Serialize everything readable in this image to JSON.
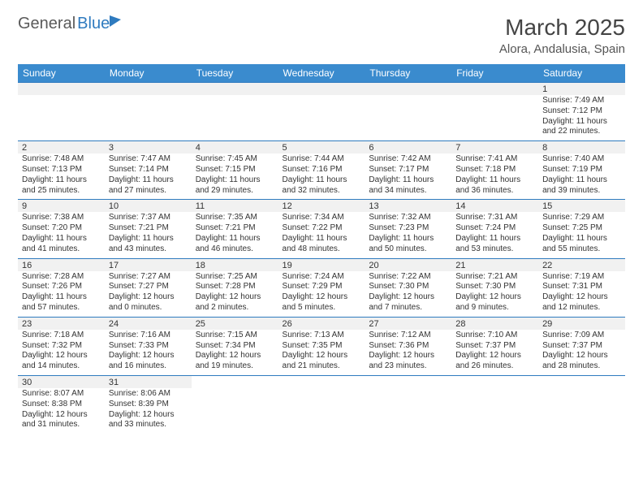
{
  "logo": {
    "part1": "General",
    "part2": "Blue"
  },
  "title": "March 2025",
  "location": "Alora, Andalusia, Spain",
  "colors": {
    "header_bg": "#3a8bce",
    "header_text": "#ffffff",
    "rule": "#2f7bbf",
    "daynum_bg": "#f1f1f1",
    "text": "#333333",
    "logo_gray": "#5a5a5a",
    "logo_blue": "#2f7bbf"
  },
  "weekdays": [
    "Sunday",
    "Monday",
    "Tuesday",
    "Wednesday",
    "Thursday",
    "Friday",
    "Saturday"
  ],
  "weeks": [
    [
      null,
      null,
      null,
      null,
      null,
      null,
      {
        "n": "1",
        "sunrise": "Sunrise: 7:49 AM",
        "sunset": "Sunset: 7:12 PM",
        "daylight": "Daylight: 11 hours and 22 minutes."
      }
    ],
    [
      {
        "n": "2",
        "sunrise": "Sunrise: 7:48 AM",
        "sunset": "Sunset: 7:13 PM",
        "daylight": "Daylight: 11 hours and 25 minutes."
      },
      {
        "n": "3",
        "sunrise": "Sunrise: 7:47 AM",
        "sunset": "Sunset: 7:14 PM",
        "daylight": "Daylight: 11 hours and 27 minutes."
      },
      {
        "n": "4",
        "sunrise": "Sunrise: 7:45 AM",
        "sunset": "Sunset: 7:15 PM",
        "daylight": "Daylight: 11 hours and 29 minutes."
      },
      {
        "n": "5",
        "sunrise": "Sunrise: 7:44 AM",
        "sunset": "Sunset: 7:16 PM",
        "daylight": "Daylight: 11 hours and 32 minutes."
      },
      {
        "n": "6",
        "sunrise": "Sunrise: 7:42 AM",
        "sunset": "Sunset: 7:17 PM",
        "daylight": "Daylight: 11 hours and 34 minutes."
      },
      {
        "n": "7",
        "sunrise": "Sunrise: 7:41 AM",
        "sunset": "Sunset: 7:18 PM",
        "daylight": "Daylight: 11 hours and 36 minutes."
      },
      {
        "n": "8",
        "sunrise": "Sunrise: 7:40 AM",
        "sunset": "Sunset: 7:19 PM",
        "daylight": "Daylight: 11 hours and 39 minutes."
      }
    ],
    [
      {
        "n": "9",
        "sunrise": "Sunrise: 7:38 AM",
        "sunset": "Sunset: 7:20 PM",
        "daylight": "Daylight: 11 hours and 41 minutes."
      },
      {
        "n": "10",
        "sunrise": "Sunrise: 7:37 AM",
        "sunset": "Sunset: 7:21 PM",
        "daylight": "Daylight: 11 hours and 43 minutes."
      },
      {
        "n": "11",
        "sunrise": "Sunrise: 7:35 AM",
        "sunset": "Sunset: 7:21 PM",
        "daylight": "Daylight: 11 hours and 46 minutes."
      },
      {
        "n": "12",
        "sunrise": "Sunrise: 7:34 AM",
        "sunset": "Sunset: 7:22 PM",
        "daylight": "Daylight: 11 hours and 48 minutes."
      },
      {
        "n": "13",
        "sunrise": "Sunrise: 7:32 AM",
        "sunset": "Sunset: 7:23 PM",
        "daylight": "Daylight: 11 hours and 50 minutes."
      },
      {
        "n": "14",
        "sunrise": "Sunrise: 7:31 AM",
        "sunset": "Sunset: 7:24 PM",
        "daylight": "Daylight: 11 hours and 53 minutes."
      },
      {
        "n": "15",
        "sunrise": "Sunrise: 7:29 AM",
        "sunset": "Sunset: 7:25 PM",
        "daylight": "Daylight: 11 hours and 55 minutes."
      }
    ],
    [
      {
        "n": "16",
        "sunrise": "Sunrise: 7:28 AM",
        "sunset": "Sunset: 7:26 PM",
        "daylight": "Daylight: 11 hours and 57 minutes."
      },
      {
        "n": "17",
        "sunrise": "Sunrise: 7:27 AM",
        "sunset": "Sunset: 7:27 PM",
        "daylight": "Daylight: 12 hours and 0 minutes."
      },
      {
        "n": "18",
        "sunrise": "Sunrise: 7:25 AM",
        "sunset": "Sunset: 7:28 PM",
        "daylight": "Daylight: 12 hours and 2 minutes."
      },
      {
        "n": "19",
        "sunrise": "Sunrise: 7:24 AM",
        "sunset": "Sunset: 7:29 PM",
        "daylight": "Daylight: 12 hours and 5 minutes."
      },
      {
        "n": "20",
        "sunrise": "Sunrise: 7:22 AM",
        "sunset": "Sunset: 7:30 PM",
        "daylight": "Daylight: 12 hours and 7 minutes."
      },
      {
        "n": "21",
        "sunrise": "Sunrise: 7:21 AM",
        "sunset": "Sunset: 7:30 PM",
        "daylight": "Daylight: 12 hours and 9 minutes."
      },
      {
        "n": "22",
        "sunrise": "Sunrise: 7:19 AM",
        "sunset": "Sunset: 7:31 PM",
        "daylight": "Daylight: 12 hours and 12 minutes."
      }
    ],
    [
      {
        "n": "23",
        "sunrise": "Sunrise: 7:18 AM",
        "sunset": "Sunset: 7:32 PM",
        "daylight": "Daylight: 12 hours and 14 minutes."
      },
      {
        "n": "24",
        "sunrise": "Sunrise: 7:16 AM",
        "sunset": "Sunset: 7:33 PM",
        "daylight": "Daylight: 12 hours and 16 minutes."
      },
      {
        "n": "25",
        "sunrise": "Sunrise: 7:15 AM",
        "sunset": "Sunset: 7:34 PM",
        "daylight": "Daylight: 12 hours and 19 minutes."
      },
      {
        "n": "26",
        "sunrise": "Sunrise: 7:13 AM",
        "sunset": "Sunset: 7:35 PM",
        "daylight": "Daylight: 12 hours and 21 minutes."
      },
      {
        "n": "27",
        "sunrise": "Sunrise: 7:12 AM",
        "sunset": "Sunset: 7:36 PM",
        "daylight": "Daylight: 12 hours and 23 minutes."
      },
      {
        "n": "28",
        "sunrise": "Sunrise: 7:10 AM",
        "sunset": "Sunset: 7:37 PM",
        "daylight": "Daylight: 12 hours and 26 minutes."
      },
      {
        "n": "29",
        "sunrise": "Sunrise: 7:09 AM",
        "sunset": "Sunset: 7:37 PM",
        "daylight": "Daylight: 12 hours and 28 minutes."
      }
    ],
    [
      {
        "n": "30",
        "sunrise": "Sunrise: 8:07 AM",
        "sunset": "Sunset: 8:38 PM",
        "daylight": "Daylight: 12 hours and 31 minutes."
      },
      {
        "n": "31",
        "sunrise": "Sunrise: 8:06 AM",
        "sunset": "Sunset: 8:39 PM",
        "daylight": "Daylight: 12 hours and 33 minutes."
      },
      null,
      null,
      null,
      null,
      null
    ]
  ]
}
